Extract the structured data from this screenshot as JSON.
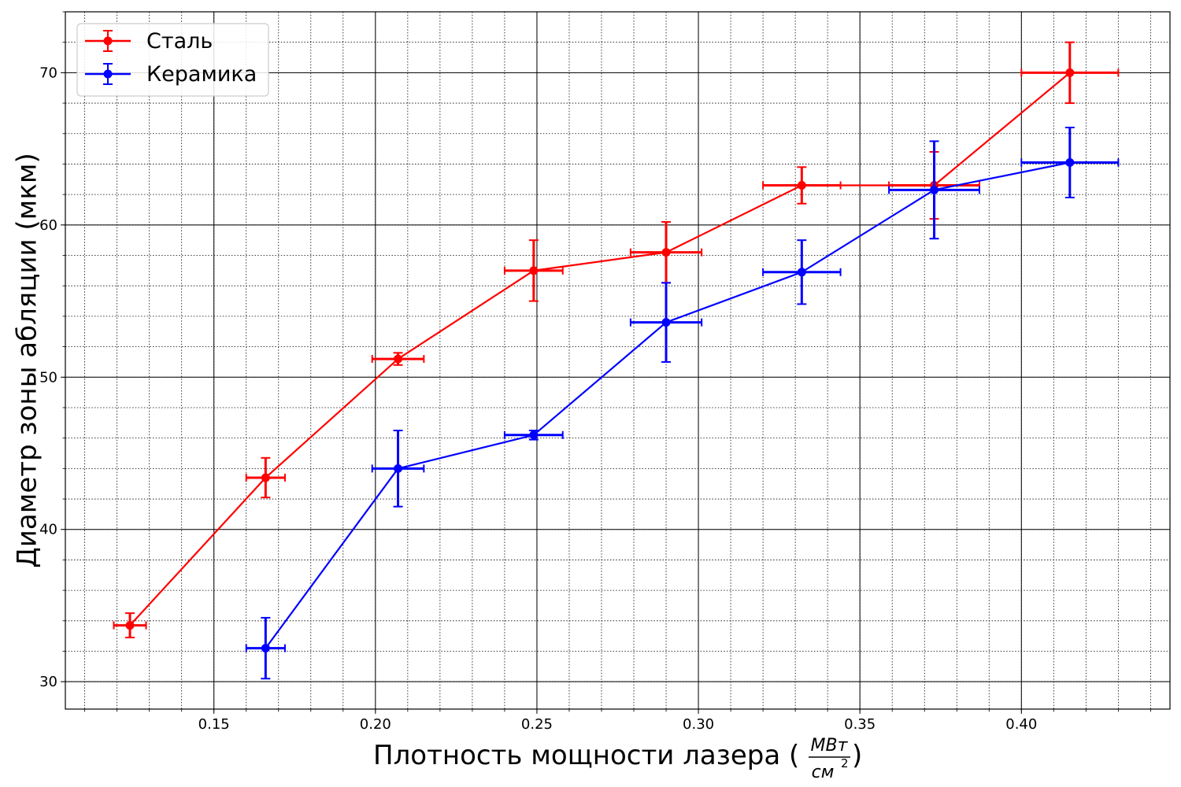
{
  "chart_data": {
    "type": "scatter",
    "xlabel": "Плотность мощности лазера (",
    "xlabel_unit_num": "МВт",
    "xlabel_unit_den": "см",
    "xlabel_unit_den_exp": "2",
    "xlabel_close": ")",
    "ylabel": "Диаметр зоны абляции (мкм)",
    "xlim": [
      0.104,
      0.446
    ],
    "ylim": [
      28.2,
      74.0
    ],
    "x_ticks": [
      0.15,
      0.2,
      0.25,
      0.3,
      0.35,
      0.4
    ],
    "x_tick_labels": [
      "0.15",
      "0.20",
      "0.25",
      "0.30",
      "0.35",
      "0.40"
    ],
    "x_minor_step": 0.01,
    "y_ticks": [
      30,
      40,
      50,
      60,
      70
    ],
    "y_tick_labels": [
      "30",
      "40",
      "50",
      "60",
      "70"
    ],
    "y_minor_step": 2,
    "grid": true,
    "legend_position": "top-left",
    "series": [
      {
        "name": "Сталь",
        "color": "#ff0000",
        "x": [
          0.124,
          0.166,
          0.207,
          0.249,
          0.29,
          0.332,
          0.373,
          0.415
        ],
        "y": [
          33.7,
          43.4,
          51.2,
          57.0,
          58.2,
          62.6,
          62.6,
          70.0
        ],
        "xerr": [
          0.005,
          0.006,
          0.008,
          0.009,
          0.011,
          0.012,
          0.014,
          0.015
        ],
        "yerr": [
          0.8,
          1.3,
          0.4,
          2.0,
          2.0,
          1.2,
          2.2,
          2.0
        ]
      },
      {
        "name": "Керамика",
        "color": "#0000ff",
        "x": [
          0.166,
          0.207,
          0.249,
          0.29,
          0.332,
          0.373,
          0.415
        ],
        "y": [
          32.2,
          44.0,
          46.2,
          53.6,
          56.9,
          62.3,
          64.1
        ],
        "xerr": [
          0.006,
          0.008,
          0.009,
          0.011,
          0.012,
          0.014,
          0.015
        ],
        "yerr": [
          2.0,
          2.5,
          0.3,
          2.6,
          2.1,
          3.2,
          2.3
        ]
      }
    ]
  }
}
